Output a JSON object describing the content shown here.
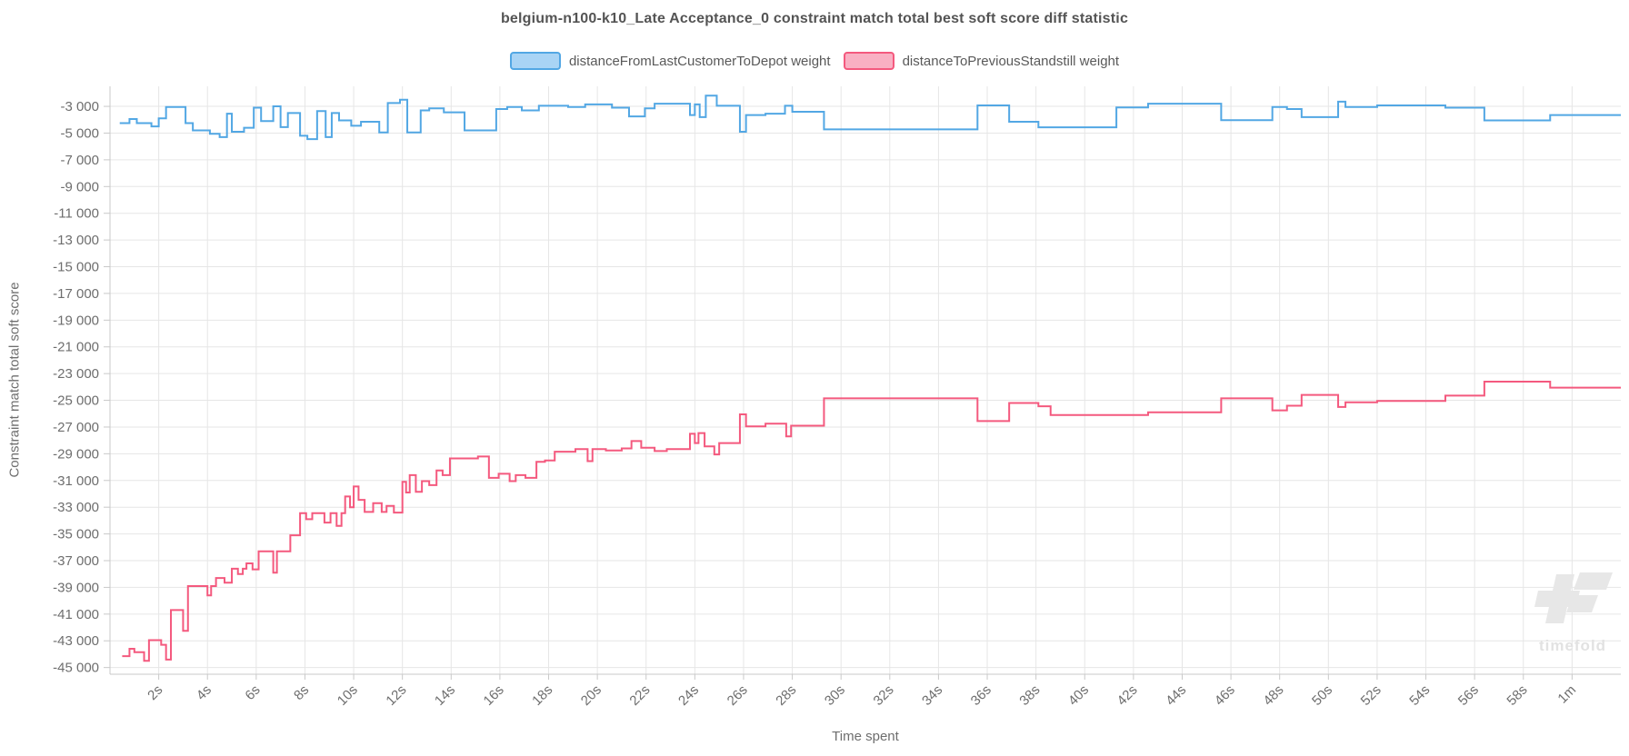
{
  "title": "belgium-n100-k10_Late Acceptance_0 constraint match total best soft score diff statistic",
  "legend": [
    {
      "label": "distanceFromLastCustomerToDepot weight",
      "color": "#52a7e4",
      "fill": "#a9d4f5"
    },
    {
      "label": "distanceToPreviousStandstill weight",
      "color": "#f4597e",
      "fill": "#f9b0c3"
    }
  ],
  "watermark": {
    "text": "timefold"
  },
  "colors": {
    "grid": "#e6e6e6",
    "axis": "#c9c9c9",
    "tick_text": "#6e6e6e",
    "title_text": "#545454",
    "watermark": "#e7e7e7"
  },
  "chart_data": {
    "type": "line",
    "step": true,
    "title": "belgium-n100-k10_Late Acceptance_0 constraint match total best soft score diff statistic",
    "xlabel": "Time spent",
    "ylabel": "Constraint match total soft score",
    "legend_position": "top-center",
    "grid": true,
    "xlim": [
      0,
      62
    ],
    "ylim": [
      -45500,
      -1500
    ],
    "x_tick_seconds": [
      2,
      4,
      6,
      8,
      10,
      12,
      14,
      16,
      18,
      20,
      22,
      24,
      26,
      28,
      30,
      32,
      34,
      36,
      38,
      40,
      42,
      44,
      46,
      48,
      50,
      52,
      54,
      56,
      58,
      60
    ],
    "x_ticks": [
      "2s",
      "4s",
      "6s",
      "8s",
      "10s",
      "12s",
      "14s",
      "16s",
      "18s",
      "20s",
      "22s",
      "24s",
      "26s",
      "28s",
      "30s",
      "32s",
      "34s",
      "36s",
      "38s",
      "40s",
      "42s",
      "44s",
      "46s",
      "48s",
      "50s",
      "52s",
      "54s",
      "56s",
      "58s",
      "1m"
    ],
    "y_ticks": [
      -3000,
      -5000,
      -7000,
      -9000,
      -11000,
      -13000,
      -15000,
      -17000,
      -19000,
      -21000,
      -23000,
      -25000,
      -27000,
      -29000,
      -31000,
      -33000,
      -35000,
      -37000,
      -39000,
      -41000,
      -43000,
      -45000
    ],
    "y_tick_labels": [
      "-3 000",
      "-5 000",
      "-7 000",
      "-9 000",
      "-11 000",
      "-13 000",
      "-15 000",
      "-17 000",
      "-19 000",
      "-21 000",
      "-23 000",
      "-25 000",
      "-27 000",
      "-29 000",
      "-31 000",
      "-33 000",
      "-35 000",
      "-37 000",
      "-39 000",
      "-41 000",
      "-43 000",
      "-45 000"
    ],
    "series": [
      {
        "name": "distanceFromLastCustomerToDepot weight",
        "color": "#52a7e4",
        "points": [
          [
            0.4,
            -4250
          ],
          [
            0.8,
            -3950
          ],
          [
            1.1,
            -4250
          ],
          [
            1.7,
            -4500
          ],
          [
            2.0,
            -3900
          ],
          [
            2.3,
            -3050
          ],
          [
            3.1,
            -4250
          ],
          [
            3.4,
            -4800
          ],
          [
            4.1,
            -5050
          ],
          [
            4.5,
            -5300
          ],
          [
            4.8,
            -3550
          ],
          [
            5.0,
            -4900
          ],
          [
            5.5,
            -4600
          ],
          [
            5.9,
            -3100
          ],
          [
            6.2,
            -4100
          ],
          [
            6.7,
            -3000
          ],
          [
            7.0,
            -4550
          ],
          [
            7.3,
            -3500
          ],
          [
            7.8,
            -5200
          ],
          [
            8.1,
            -5450
          ],
          [
            8.5,
            -3350
          ],
          [
            8.85,
            -5300
          ],
          [
            9.1,
            -3500
          ],
          [
            9.4,
            -4050
          ],
          [
            9.9,
            -4450
          ],
          [
            10.3,
            -4150
          ],
          [
            11.05,
            -4950
          ],
          [
            11.4,
            -2750
          ],
          [
            11.9,
            -2500
          ],
          [
            12.2,
            -4950
          ],
          [
            12.75,
            -3300
          ],
          [
            13.1,
            -3150
          ],
          [
            13.7,
            -3450
          ],
          [
            14.55,
            -4800
          ],
          [
            15.85,
            -3200
          ],
          [
            16.3,
            -3050
          ],
          [
            16.9,
            -3300
          ],
          [
            17.6,
            -2950
          ],
          [
            18.8,
            -3050
          ],
          [
            19.5,
            -2850
          ],
          [
            20.6,
            -3100
          ],
          [
            21.3,
            -3750
          ],
          [
            21.95,
            -3150
          ],
          [
            22.35,
            -2800
          ],
          [
            23.8,
            -3650
          ],
          [
            24.0,
            -2850
          ],
          [
            24.2,
            -3800
          ],
          [
            24.45,
            -2200
          ],
          [
            24.9,
            -2950
          ],
          [
            25.85,
            -4900
          ],
          [
            26.1,
            -3650
          ],
          [
            26.9,
            -3550
          ],
          [
            27.7,
            -2950
          ],
          [
            28.0,
            -3400
          ],
          [
            29.3,
            -4720
          ],
          [
            35.6,
            -2930
          ],
          [
            36.9,
            -4150
          ],
          [
            38.1,
            -4570
          ],
          [
            41.3,
            -3080
          ],
          [
            42.6,
            -2800
          ],
          [
            45.6,
            -4030
          ],
          [
            47.7,
            -3050
          ],
          [
            48.3,
            -3200
          ],
          [
            48.9,
            -3800
          ],
          [
            50.4,
            -2650
          ],
          [
            50.7,
            -3050
          ],
          [
            52.0,
            -2930
          ],
          [
            54.8,
            -3100
          ],
          [
            56.4,
            -4050
          ],
          [
            59.1,
            -3650
          ],
          [
            62.0,
            -3650
          ]
        ]
      },
      {
        "name": "distanceToPreviousStandstill weight",
        "color": "#f4597e",
        "points": [
          [
            0.5,
            -44150
          ],
          [
            0.8,
            -43600
          ],
          [
            1.0,
            -43850
          ],
          [
            1.4,
            -44500
          ],
          [
            1.6,
            -42950
          ],
          [
            2.1,
            -43300
          ],
          [
            2.3,
            -44400
          ],
          [
            2.5,
            -40700
          ],
          [
            3.0,
            -42250
          ],
          [
            3.2,
            -38900
          ],
          [
            4.0,
            -39600
          ],
          [
            4.15,
            -38900
          ],
          [
            4.35,
            -38300
          ],
          [
            4.7,
            -38650
          ],
          [
            5.0,
            -37600
          ],
          [
            5.25,
            -38000
          ],
          [
            5.45,
            -37600
          ],
          [
            5.6,
            -37200
          ],
          [
            5.85,
            -37650
          ],
          [
            6.1,
            -36300
          ],
          [
            6.7,
            -37900
          ],
          [
            6.85,
            -36300
          ],
          [
            7.4,
            -35100
          ],
          [
            7.8,
            -33450
          ],
          [
            8.05,
            -33900
          ],
          [
            8.3,
            -33450
          ],
          [
            8.8,
            -34150
          ],
          [
            9.05,
            -33450
          ],
          [
            9.3,
            -34400
          ],
          [
            9.5,
            -33450
          ],
          [
            9.65,
            -32200
          ],
          [
            9.85,
            -33000
          ],
          [
            10.0,
            -31450
          ],
          [
            10.2,
            -32450
          ],
          [
            10.45,
            -33350
          ],
          [
            10.8,
            -32700
          ],
          [
            11.15,
            -33350
          ],
          [
            11.35,
            -32900
          ],
          [
            11.65,
            -33400
          ],
          [
            12.0,
            -31100
          ],
          [
            12.15,
            -31900
          ],
          [
            12.3,
            -30600
          ],
          [
            12.55,
            -31850
          ],
          [
            12.8,
            -31050
          ],
          [
            13.1,
            -31350
          ],
          [
            13.4,
            -30250
          ],
          [
            13.65,
            -30600
          ],
          [
            13.95,
            -29350
          ],
          [
            15.1,
            -29200
          ],
          [
            15.55,
            -30800
          ],
          [
            15.95,
            -30500
          ],
          [
            16.4,
            -31050
          ],
          [
            16.65,
            -30600
          ],
          [
            17.05,
            -30800
          ],
          [
            17.5,
            -29600
          ],
          [
            17.85,
            -29500
          ],
          [
            18.25,
            -28850
          ],
          [
            19.1,
            -28650
          ],
          [
            19.6,
            -29550
          ],
          [
            19.8,
            -28650
          ],
          [
            20.35,
            -28750
          ],
          [
            21.0,
            -28600
          ],
          [
            21.4,
            -28050
          ],
          [
            21.8,
            -28550
          ],
          [
            22.35,
            -28800
          ],
          [
            22.85,
            -28650
          ],
          [
            23.8,
            -27500
          ],
          [
            24.0,
            -28200
          ],
          [
            24.15,
            -27450
          ],
          [
            24.4,
            -28450
          ],
          [
            24.8,
            -29050
          ],
          [
            25.0,
            -28200
          ],
          [
            25.85,
            -26050
          ],
          [
            26.1,
            -26950
          ],
          [
            26.9,
            -26750
          ],
          [
            27.75,
            -27700
          ],
          [
            27.95,
            -26900
          ],
          [
            29.3,
            -24850
          ],
          [
            35.6,
            -26550
          ],
          [
            36.9,
            -25200
          ],
          [
            38.1,
            -25450
          ],
          [
            38.6,
            -26100
          ],
          [
            42.6,
            -25900
          ],
          [
            45.6,
            -24850
          ],
          [
            47.7,
            -25750
          ],
          [
            48.3,
            -25400
          ],
          [
            48.9,
            -24600
          ],
          [
            50.4,
            -25500
          ],
          [
            50.7,
            -25150
          ],
          [
            52.0,
            -25050
          ],
          [
            54.8,
            -24650
          ],
          [
            56.4,
            -23600
          ],
          [
            59.1,
            -24050
          ],
          [
            62.0,
            -24050
          ]
        ]
      }
    ]
  }
}
